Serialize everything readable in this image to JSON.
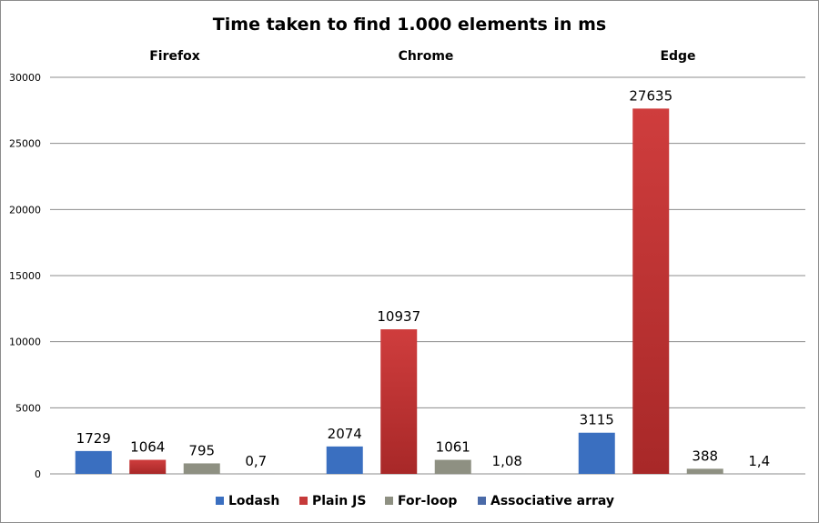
{
  "chart_data": {
    "type": "bar",
    "title": "Time taken to find 1.000 elements in ms",
    "categories": [
      "Firefox",
      "Chrome",
      "Edge"
    ],
    "series": [
      {
        "name": "Lodash",
        "color": "#3a6fc0",
        "values": [
          1729,
          2074,
          3115
        ],
        "labels": [
          "1729",
          "2074",
          "3115"
        ]
      },
      {
        "name": "Plain JS",
        "color": "#c63a3a",
        "values": [
          1064,
          10937,
          27635
        ],
        "labels": [
          "1064",
          "10937",
          "27635"
        ]
      },
      {
        "name": "For-loop",
        "color": "#8e9082",
        "values": [
          795,
          1061,
          388
        ],
        "labels": [
          "795",
          "1061",
          "388"
        ]
      },
      {
        "name": "Associative array",
        "color": "#4a6aa8",
        "values": [
          0.7,
          1.08,
          1.4
        ],
        "labels": [
          "0,7",
          "1,08",
          "1,4"
        ]
      }
    ],
    "ylim": [
      0,
      30000
    ],
    "yticks": [
      "0",
      "5000",
      "10000",
      "15000",
      "20000",
      "25000",
      "30000"
    ],
    "xlabel": "",
    "ylabel": "",
    "grid": true,
    "legend_position": "bottom"
  }
}
